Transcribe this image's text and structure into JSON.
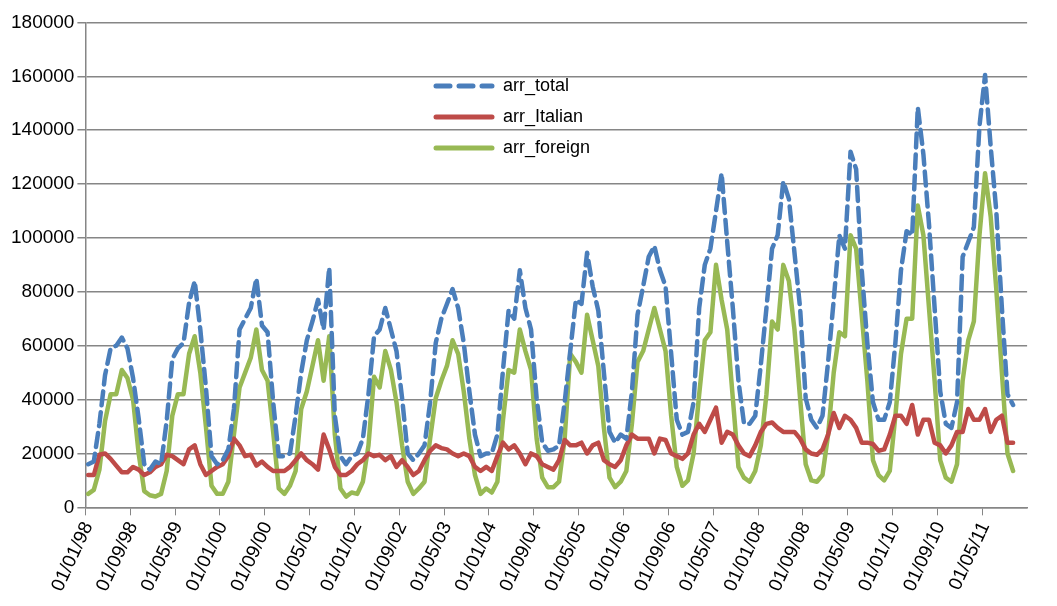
{
  "chart_data": {
    "type": "line",
    "categories": [
      "01/01/98",
      null,
      null,
      null,
      null,
      null,
      null,
      null,
      "01/09/98",
      null,
      null,
      null,
      null,
      null,
      null,
      null,
      "01/05/99",
      null,
      null,
      null,
      null,
      null,
      null,
      null,
      "01/01/00",
      null,
      null,
      null,
      null,
      null,
      null,
      null,
      "01/09/00",
      null,
      null,
      null,
      null,
      null,
      null,
      null,
      "01/05/01",
      null,
      null,
      null,
      null,
      null,
      null,
      null,
      "01/01/02",
      null,
      null,
      null,
      null,
      null,
      null,
      null,
      "01/09/02",
      null,
      null,
      null,
      null,
      null,
      null,
      null,
      "01/05/03",
      null,
      null,
      null,
      null,
      null,
      null,
      null,
      "01/01/04",
      null,
      null,
      null,
      null,
      null,
      null,
      null,
      "01/09/04",
      null,
      null,
      null,
      null,
      null,
      null,
      null,
      "01/05/05",
      null,
      null,
      null,
      null,
      null,
      null,
      null,
      "01/01/06",
      null,
      null,
      null,
      null,
      null,
      null,
      null,
      "01/09/06",
      null,
      null,
      null,
      null,
      null,
      null,
      null,
      "01/05/07",
      null,
      null,
      null,
      null,
      null,
      null,
      null,
      "01/01/08",
      null,
      null,
      null,
      null,
      null,
      null,
      null,
      "01/09/08",
      null,
      null,
      null,
      null,
      null,
      null,
      null,
      "01/05/09",
      null,
      null,
      null,
      null,
      null,
      null,
      null,
      "01/01/10",
      null,
      null,
      null,
      null,
      null,
      null,
      null,
      "01/09/10",
      null,
      null,
      null,
      null,
      null,
      null,
      null,
      "01/05/11",
      null,
      null,
      null,
      null,
      null,
      null,
      null
    ],
    "series": [
      {
        "name": "arr_total",
        "color": "#4a7ebb",
        "line_style": "dashed",
        "values": [
          16000,
          17000,
          31000,
          49000,
          59000,
          60000,
          63000,
          59000,
          48000,
          33000,
          16000,
          14000,
          17000,
          16000,
          32000,
          55000,
          59000,
          61000,
          76000,
          84000,
          66000,
          44500,
          19000,
          16000,
          17500,
          21500,
          36500,
          66000,
          70000,
          74000,
          85000,
          67500,
          65000,
          39000,
          19000,
          19000,
          20000,
          34000,
          50000,
          62000,
          69000,
          77000,
          66000,
          89000,
          34000,
          19000,
          16000,
          19000,
          20000,
          25500,
          42000,
          63500,
          66000,
          74000,
          66000,
          58000,
          40500,
          20000,
          17500,
          20000,
          23000,
          39000,
          61000,
          70000,
          75500,
          81000,
          74000,
          61000,
          43000,
          27000,
          19000,
          20000,
          20000,
          27000,
          51000,
          73000,
          70000,
          88000,
          74000,
          66000,
          40500,
          24000,
          21000,
          21500,
          23000,
          39000,
          58000,
          77000,
          75500,
          94500,
          82000,
          73000,
          50000,
          28000,
          24000,
          27000,
          25500,
          43000,
          71500,
          82000,
          93000,
          97000,
          88000,
          82000,
          57000,
          32500,
          27000,
          28000,
          39000,
          74000,
          90000,
          96000,
          110000,
          124000,
          98500,
          74000,
          47000,
          31000,
          31000,
          34000,
          53000,
          74000,
          96000,
          101000,
          121000,
          114500,
          94500,
          74000,
          40500,
          32500,
          29500,
          34000,
          54000,
          77000,
          101000,
          96000,
          132000,
          125500,
          88000,
          61000,
          39000,
          32500,
          32500,
          39000,
          61000,
          88000,
          102500,
          101000,
          148500,
          131000,
          105000,
          74000,
          43000,
          31000,
          29500,
          39000,
          93000,
          98500,
          104000,
          141500,
          160500,
          134000,
          110000,
          74000,
          42000,
          38000,
          null,
          null
        ]
      },
      {
        "name": "arr_Italian",
        "color": "#be4b48",
        "line_style": "solid",
        "values": [
          12000,
          12000,
          19500,
          20000,
          18000,
          15500,
          13000,
          13000,
          15000,
          14000,
          12000,
          13000,
          15000,
          16000,
          19500,
          19000,
          17500,
          16000,
          21500,
          23000,
          16000,
          12000,
          13500,
          15000,
          16000,
          19000,
          25500,
          23000,
          19000,
          19500,
          15500,
          17000,
          15000,
          13500,
          13500,
          13500,
          15000,
          17500,
          20000,
          17500,
          16000,
          14000,
          27000,
          21500,
          15000,
          12000,
          12000,
          13500,
          16000,
          17500,
          20000,
          19000,
          19500,
          17500,
          19000,
          15000,
          17500,
          15000,
          12000,
          13500,
          17500,
          21000,
          23000,
          22000,
          21500,
          20000,
          19000,
          20000,
          19000,
          15000,
          13500,
          15000,
          13500,
          19000,
          24000,
          21500,
          23000,
          20000,
          16000,
          20000,
          19000,
          16000,
          15000,
          14000,
          17500,
          25000,
          23000,
          23000,
          24000,
          20000,
          23000,
          24000,
          17500,
          16000,
          15000,
          17500,
          23000,
          27000,
          25500,
          25500,
          25500,
          20000,
          25500,
          25000,
          20000,
          19000,
          18000,
          20000,
          27000,
          31000,
          28000,
          32500,
          37000,
          24000,
          28000,
          27000,
          23000,
          20000,
          19000,
          23000,
          28000,
          31000,
          31500,
          29500,
          28000,
          28000,
          28000,
          25500,
          21500,
          20000,
          19500,
          21500,
          27000,
          35000,
          29500,
          34000,
          32500,
          29500,
          24000,
          24000,
          23500,
          21000,
          21500,
          27000,
          34000,
          34000,
          31000,
          38000,
          27000,
          32500,
          32500,
          24000,
          23000,
          20000,
          23000,
          28000,
          28000,
          36500,
          32500,
          32500,
          36500,
          28000,
          32500,
          34000,
          24000,
          24000,
          null,
          null
        ]
      },
      {
        "name": "arr_foreign",
        "color": "#98b954",
        "line_style": "solid",
        "values": [
          5000,
          6500,
          14000,
          32000,
          42000,
          42000,
          51000,
          48000,
          40000,
          20000,
          6000,
          4500,
          4000,
          5000,
          13500,
          34000,
          42000,
          42000,
          57000,
          63500,
          50000,
          30000,
          8000,
          5000,
          5000,
          9500,
          27000,
          44500,
          50000,
          55500,
          66000,
          51000,
          47000,
          28000,
          7000,
          5000,
          8000,
          13500,
          36500,
          43000,
          52500,
          62000,
          47000,
          63500,
          27000,
          7000,
          4000,
          5500,
          5000,
          9500,
          23000,
          48500,
          44500,
          58000,
          51000,
          39000,
          23000,
          9500,
          5000,
          7000,
          9500,
          25500,
          40500,
          47000,
          52500,
          62000,
          57000,
          43000,
          25500,
          12000,
          5000,
          7000,
          5500,
          9500,
          32500,
          51000,
          50000,
          66000,
          58000,
          51000,
          25500,
          11000,
          7500,
          7500,
          9500,
          25500,
          57000,
          54000,
          50000,
          71500,
          62000,
          52500,
          29500,
          11000,
          7500,
          9500,
          13500,
          31000,
          54000,
          58000,
          66000,
          74000,
          66000,
          58000,
          34000,
          15000,
          8000,
          10000,
          20000,
          42000,
          62000,
          65000,
          90000,
          77000,
          66000,
          40500,
          15000,
          11000,
          9500,
          13500,
          23000,
          42000,
          69000,
          66000,
          90000,
          84000,
          66000,
          40500,
          16000,
          10000,
          9500,
          12000,
          27000,
          50000,
          65000,
          63500,
          101000,
          96000,
          71500,
          47000,
          17500,
          12000,
          10000,
          13500,
          34000,
          57000,
          70000,
          70000,
          112000,
          101000,
          74000,
          47000,
          17500,
          11000,
          9500,
          16000,
          47000,
          62000,
          69000,
          101000,
          124000,
          108000,
          81000,
          50000,
          20000,
          13500,
          null,
          null
        ]
      }
    ],
    "ylim": [
      0,
      180000
    ],
    "yticks": [
      0,
      20000,
      40000,
      60000,
      80000,
      100000,
      120000,
      140000,
      160000,
      180000
    ],
    "grid": "y",
    "legend": "top",
    "marker": "none"
  }
}
